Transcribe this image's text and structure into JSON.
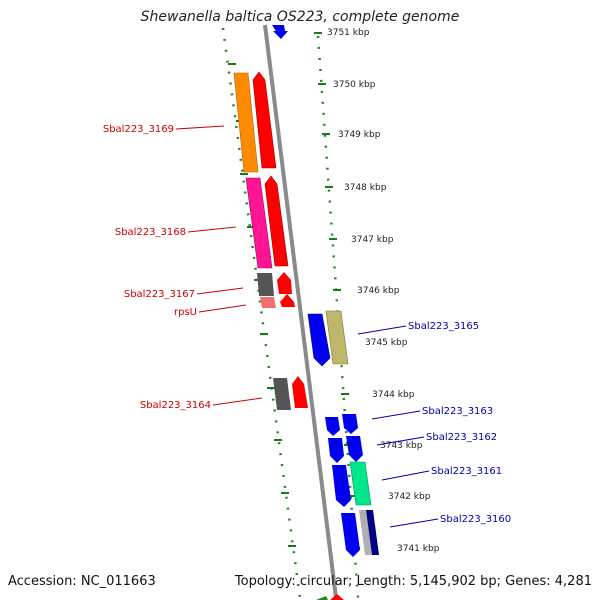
{
  "title": "Shewanella baltica OS223, complete genome",
  "accession": "Accession: NC_011663",
  "topology": "Topology: circular; Length: 5,145,902 bp; Genes: 4,281",
  "colors": {
    "ruler": "#228b22",
    "backbone": "#909090",
    "left_label": "#cc0000",
    "right_label": "#0000aa",
    "red": "#ff0000",
    "blue": "#0000ee"
  },
  "ticks": [
    "3751 kbp",
    "3750 kbp",
    "3749 kbp",
    "3748 kbp",
    "3747 kbp",
    "3746 kbp",
    "3745 kbp",
    "3744 kbp",
    "3743 kbp",
    "3742 kbp",
    "3741 kbp"
  ],
  "left_labels": [
    "Sbal223_3169",
    "Sbal223_3168",
    "Sbal223_3167",
    "rpsU",
    "Sbal223_3164"
  ],
  "right_labels": [
    "Sbal223_3165",
    "Sbal223_3163",
    "Sbal223_3162",
    "Sbal223_3161",
    "Sbal223_3160"
  ]
}
